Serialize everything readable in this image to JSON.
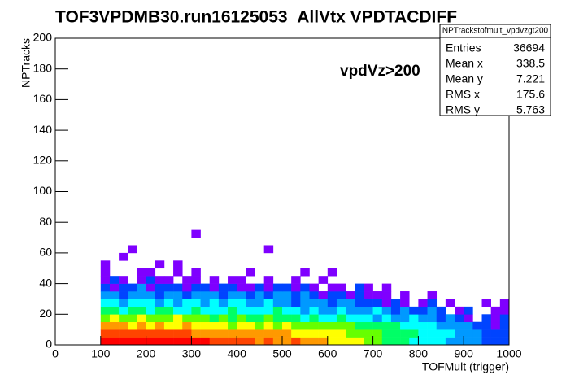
{
  "chart_data": {
    "type": "heatmap",
    "title": "TOF3VPDMB30.run16125053_AllVtx VPDTACDIFF",
    "annotation": "vpdVz>200",
    "x_label": "TOFMult (trigger)",
    "y_label": "NPTracks",
    "xlim": [
      0,
      1000
    ],
    "ylim": [
      0,
      200
    ],
    "xticks": [
      0,
      100,
      200,
      300,
      400,
      500,
      600,
      700,
      800,
      900,
      1000
    ],
    "yticks": [
      0,
      20,
      40,
      60,
      80,
      100,
      120,
      140,
      160,
      180,
      200
    ],
    "xbins": [
      100,
      120,
      140,
      160,
      180,
      200,
      220,
      240,
      260,
      280,
      300,
      320,
      340,
      360,
      380,
      400,
      420,
      440,
      460,
      480,
      500,
      520,
      540,
      560,
      580,
      600,
      620,
      640,
      660,
      680,
      700,
      720,
      740,
      760,
      780,
      800,
      820,
      840,
      860,
      880,
      900,
      920,
      940,
      960,
      980,
      1000
    ],
    "ybins": [
      0,
      5,
      10,
      15,
      20,
      25,
      30,
      35,
      40,
      45,
      50,
      55,
      60,
      65,
      70,
      75
    ],
    "palette": [
      "#7f00ff",
      "#0044ff",
      "#0099ff",
      "#00ffff",
      "#00ff66",
      "#66ff00",
      "#ffff00",
      "#ff9900",
      "#ff4400",
      "#ff0000"
    ],
    "z": [
      [
        10,
        10,
        10,
        10,
        10,
        10,
        10,
        10,
        10,
        10,
        10,
        10,
        9,
        9,
        9,
        9,
        9,
        8,
        9,
        8,
        8,
        9,
        8,
        8,
        8,
        7,
        7,
        7,
        7,
        6,
        6,
        5,
        5,
        5,
        4,
        4,
        4,
        4,
        3,
        3,
        3,
        3,
        2,
        2,
        2
      ],
      [
        9,
        9,
        9,
        9,
        9,
        9,
        9,
        9,
        9,
        9,
        8,
        8,
        8,
        8,
        8,
        8,
        8,
        8,
        8,
        8,
        8,
        7,
        7,
        7,
        7,
        7,
        7,
        6,
        6,
        6,
        6,
        5,
        5,
        5,
        5,
        4,
        4,
        4,
        4,
        3,
        3,
        3,
        2,
        2,
        2
      ],
      [
        8,
        8,
        8,
        7,
        8,
        7,
        8,
        7,
        7,
        8,
        7,
        7,
        7,
        7,
        6,
        7,
        7,
        6,
        7,
        6,
        7,
        6,
        6,
        6,
        6,
        6,
        6,
        6,
        5,
        5,
        5,
        5,
        5,
        4,
        4,
        4,
        4,
        3,
        3,
        3,
        3,
        2,
        2,
        1,
        2
      ],
      [
        6,
        7,
        6,
        6,
        7,
        6,
        6,
        6,
        7,
        6,
        6,
        6,
        5,
        6,
        5,
        6,
        5,
        5,
        6,
        5,
        5,
        5,
        4,
        5,
        4,
        4,
        5,
        4,
        4,
        4,
        3,
        4,
        3,
        3,
        4,
        3,
        3,
        2,
        3,
        2,
        1,
        0,
        2,
        1,
        2
      ],
      [
        5,
        5,
        4,
        5,
        5,
        4,
        5,
        5,
        4,
        4,
        5,
        4,
        4,
        4,
        5,
        4,
        4,
        4,
        4,
        5,
        4,
        4,
        3,
        4,
        3,
        3,
        4,
        3,
        3,
        3,
        4,
        3,
        2,
        3,
        2,
        2,
        3,
        2,
        0,
        1,
        2,
        0,
        0,
        1,
        1
      ],
      [
        4,
        4,
        3,
        4,
        4,
        4,
        3,
        4,
        3,
        4,
        4,
        3,
        4,
        3,
        4,
        4,
        3,
        3,
        4,
        3,
        3,
        2,
        3,
        3,
        3,
        2,
        3,
        3,
        2,
        2,
        2,
        1,
        2,
        1,
        0,
        1,
        2,
        0,
        1,
        0,
        0,
        0,
        1,
        0,
        1
      ],
      [
        3,
        3,
        2,
        3,
        3,
        3,
        2,
        3,
        3,
        2,
        3,
        3,
        3,
        2,
        3,
        3,
        2,
        3,
        2,
        3,
        3,
        2,
        3,
        2,
        1,
        2,
        2,
        1,
        2,
        1,
        1,
        1,
        0,
        1,
        0,
        0,
        1,
        0,
        0,
        0,
        0,
        0,
        0,
        0,
        0
      ],
      [
        2,
        1,
        2,
        2,
        3,
        1,
        2,
        2,
        2,
        1,
        2,
        2,
        1,
        2,
        2,
        1,
        1,
        2,
        1,
        2,
        2,
        1,
        2,
        1,
        0,
        1,
        1,
        0,
        2,
        1,
        0,
        1,
        0,
        0,
        0,
        0,
        0,
        0,
        0,
        0,
        0,
        0,
        0,
        0,
        0
      ],
      [
        1,
        2,
        1,
        0,
        1,
        2,
        1,
        1,
        0,
        1,
        1,
        0,
        1,
        0,
        1,
        1,
        0,
        0,
        1,
        0,
        0,
        1,
        0,
        0,
        1,
        0,
        0,
        0,
        0,
        0,
        0,
        0,
        0,
        0,
        0,
        0,
        0,
        0,
        0,
        0,
        0,
        0,
        0,
        0,
        0
      ],
      [
        1,
        0,
        0,
        0,
        1,
        1,
        0,
        0,
        1,
        0,
        1,
        0,
        0,
        0,
        0,
        0,
        1,
        0,
        0,
        0,
        0,
        0,
        1,
        0,
        0,
        1,
        0,
        0,
        0,
        0,
        0,
        0,
        0,
        0,
        0,
        0,
        0,
        0,
        0,
        0,
        0,
        0,
        0,
        0,
        0
      ],
      [
        1,
        0,
        0,
        0,
        0,
        0,
        1,
        0,
        1,
        0,
        0,
        0,
        0,
        0,
        0,
        0,
        0,
        0,
        0,
        0,
        0,
        0,
        0,
        0,
        0,
        0,
        0,
        0,
        0,
        0,
        0,
        0,
        0,
        0,
        0,
        0,
        0,
        0,
        0,
        0,
        0,
        0,
        0,
        0,
        0
      ],
      [
        0,
        0,
        1,
        0,
        0,
        0,
        0,
        0,
        0,
        0,
        0,
        0,
        0,
        0,
        0,
        0,
        0,
        0,
        0,
        0,
        0,
        0,
        0,
        0,
        0,
        0,
        0,
        0,
        0,
        0,
        0,
        0,
        0,
        0,
        0,
        0,
        0,
        0,
        0,
        0,
        0,
        0,
        0,
        0,
        0
      ],
      [
        0,
        0,
        0,
        1,
        0,
        0,
        0,
        0,
        0,
        0,
        0,
        0,
        0,
        0,
        0,
        0,
        0,
        0,
        1,
        0,
        0,
        0,
        0,
        0,
        0,
        0,
        0,
        0,
        0,
        0,
        0,
        0,
        0,
        0,
        0,
        0,
        0,
        0,
        0,
        0,
        0,
        0,
        0,
        0,
        0
      ],
      [
        0,
        0,
        0,
        0,
        0,
        0,
        0,
        0,
        0,
        0,
        0,
        0,
        0,
        0,
        0,
        0,
        0,
        0,
        0,
        0,
        0,
        0,
        0,
        0,
        0,
        0,
        0,
        0,
        0,
        0,
        0,
        0,
        0,
        0,
        0,
        0,
        0,
        0,
        0,
        0,
        0,
        0,
        0,
        0,
        0
      ],
      [
        0,
        0,
        0,
        0,
        0,
        0,
        0,
        0,
        0,
        0,
        1,
        0,
        0,
        0,
        0,
        0,
        0,
        0,
        0,
        0,
        0,
        0,
        0,
        0,
        0,
        0,
        0,
        0,
        0,
        0,
        0,
        0,
        0,
        0,
        0,
        0,
        0,
        0,
        0,
        0,
        0,
        0,
        0,
        0,
        0
      ]
    ],
    "stats": {
      "title": "NPTrackstofmult_vpdvzgt200",
      "rows": [
        {
          "label": "Entries",
          "value": 36694
        },
        {
          "label": "Mean x",
          "value": 338.5
        },
        {
          "label": "Mean y",
          "value": 7.221
        },
        {
          "label": "RMS x",
          "value": 175.6
        },
        {
          "label": "RMS y",
          "value": 5.763
        }
      ]
    }
  }
}
